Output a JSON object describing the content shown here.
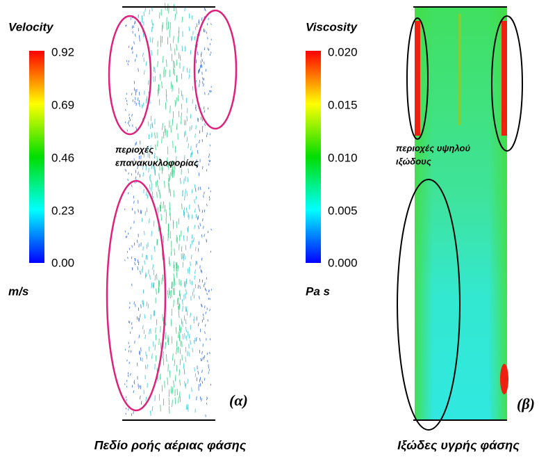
{
  "panels": [
    {
      "legend_title": "Velocity",
      "legend_ticks": [
        "0.92",
        "0.69",
        "0.46",
        "0.23",
        "0.00"
      ],
      "unit": "m/s",
      "annotation": [
        "περιοχές",
        "επανακυκλοφορίας"
      ],
      "label": "(α)",
      "caption": "Πεδίο ροής αέριας φάσης"
    },
    {
      "legend_title": "Viscosity",
      "legend_ticks": [
        "0.020",
        "0.015",
        "0.010",
        "0.005",
        "0.000"
      ],
      "unit": "Pa s",
      "annotation": [
        "περιοχές υψηλού",
        "ιξώδους"
      ],
      "label": "(β)",
      "caption": "Ιξώδες υγρής φάσης"
    }
  ]
}
